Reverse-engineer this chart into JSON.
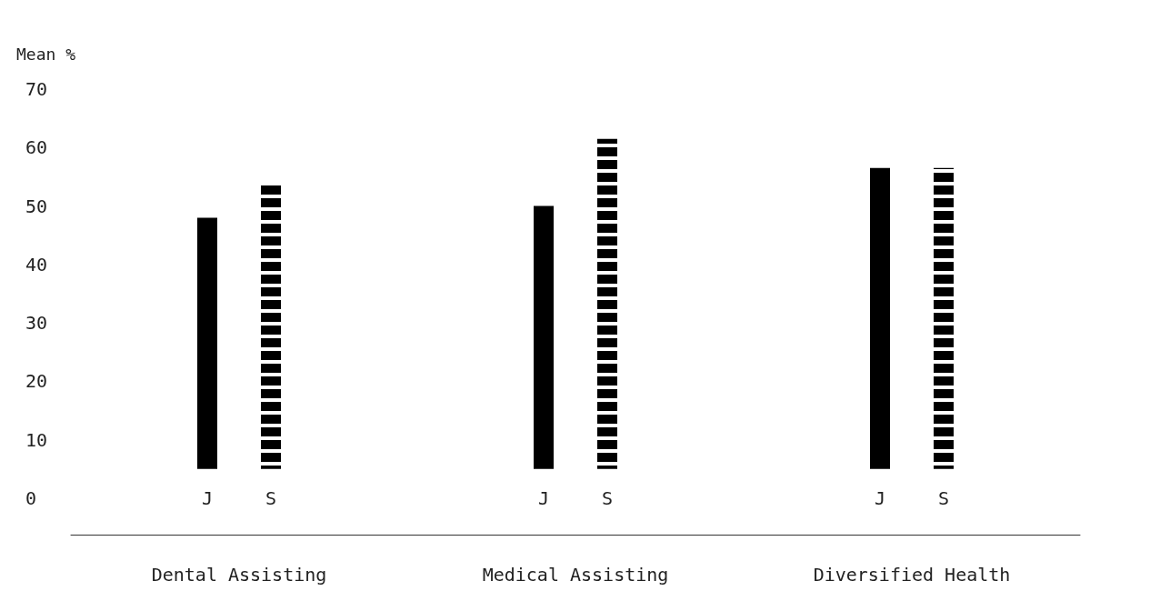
{
  "chart_data": {
    "type": "bar",
    "ylabel": "Mean %",
    "categories": [
      "Dental Assisting",
      "Medical Assisting",
      "Diversified Health"
    ],
    "series": [
      {
        "name": "J",
        "color": "#000000",
        "base": [
          5,
          5,
          5
        ],
        "values": [
          43,
          45,
          51.5
        ]
      },
      {
        "name": "S",
        "color": "#000000",
        "line_style": "dashed",
        "base": [
          5,
          5,
          5
        ],
        "values": [
          49,
          56.5,
          51.5
        ]
      }
    ],
    "ylim": [
      0,
      70
    ],
    "yticks": [
      0,
      10,
      20,
      30,
      40,
      50,
      60,
      70
    ],
    "grid": false,
    "legend": false
  }
}
